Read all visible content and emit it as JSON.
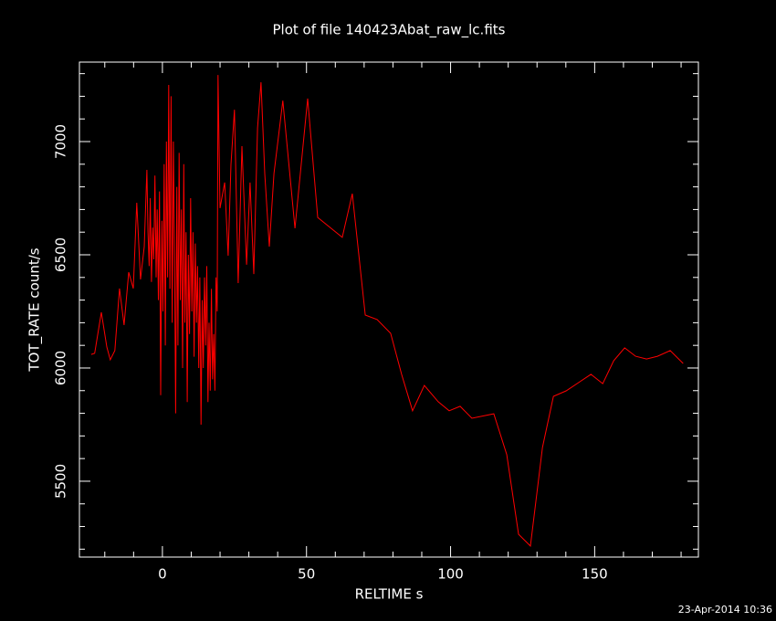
{
  "chart_data": {
    "type": "line",
    "title": "Plot of file 140423Abat_raw_lc.fits",
    "xlabel": "RELTIME  s",
    "ylabel": "TOT_RATE  count/s",
    "footer": "23-Apr-2014 10:36",
    "color": "#ff0000",
    "axis_color": "#ffffff",
    "xlim": [
      -28.8,
      186
    ],
    "ylim": [
      5165,
      7351
    ],
    "xticks": [
      0,
      50,
      100,
      150
    ],
    "yticks": [
      5500,
      6000,
      6500,
      7000
    ],
    "xminorticks": [
      -20,
      -10,
      10,
      20,
      30,
      40,
      60,
      70,
      80,
      90,
      110,
      120,
      130,
      140,
      160,
      170,
      180
    ],
    "yminorticks": [
      5200,
      5300,
      5400,
      5600,
      5700,
      5800,
      5900,
      6100,
      6200,
      6300,
      6400,
      6600,
      6700,
      6800,
      6900,
      7100,
      7200,
      7300
    ],
    "x": [
      -24.7,
      -23.5,
      -21.2,
      -19.3,
      -18.1,
      -16.5,
      -14.9,
      -13.3,
      -11.7,
      -10.1,
      -8.9,
      -7.6,
      -6.3,
      -5.4,
      -5.0,
      -4.6,
      -4.2,
      -3.8,
      -3.4,
      -3.0,
      -2.6,
      -2.2,
      -1.8,
      -1.4,
      -1.0,
      -0.6,
      -0.2,
      0.2,
      0.6,
      1.0,
      1.4,
      1.8,
      2.2,
      2.6,
      3.0,
      3.4,
      3.8,
      4.2,
      4.6,
      5.0,
      5.4,
      5.8,
      6.2,
      6.6,
      7.0,
      7.4,
      7.8,
      8.2,
      8.6,
      9.0,
      9.4,
      9.8,
      10.2,
      10.6,
      11.0,
      11.4,
      11.8,
      12.2,
      12.6,
      13.0,
      13.4,
      13.8,
      14.2,
      14.6,
      15.0,
      15.4,
      15.8,
      16.2,
      16.6,
      17.0,
      17.4,
      17.8,
      18.2,
      18.6,
      19.0,
      19.3,
      20.0,
      21.6,
      22.8,
      23.8,
      25.0,
      26.3,
      27.6,
      29.2,
      30.4,
      31.7,
      33.0,
      34.2,
      35.5,
      37.1,
      38.7,
      41.8,
      46.0,
      50.4,
      53.9,
      62.4,
      65.9,
      70.4,
      74.5,
      79.2,
      83.0,
      86.8,
      90.9,
      95.7,
      99.5,
      103.3,
      107.4,
      115.0,
      119.5,
      123.6,
      127.7,
      131.9,
      135.7,
      140.1,
      148.7,
      152.8,
      156.6,
      160.4,
      164.2,
      168.0,
      171.8,
      176.2,
      180.7
    ],
    "values": [
      6060,
      6065,
      6246,
      6093,
      6036,
      6077,
      6351,
      6190,
      6423,
      6351,
      6730,
      6391,
      6536,
      6875,
      6600,
      6450,
      6750,
      6380,
      6620,
      6480,
      6850,
      6400,
      6700,
      6300,
      6780,
      5880,
      6650,
      6250,
      6900,
      6100,
      7000,
      6400,
      7250,
      6350,
      7200,
      6200,
      7000,
      6500,
      5800,
      6800,
      6100,
      6950,
      6300,
      6700,
      6000,
      6900,
      6200,
      6600,
      5850,
      6500,
      6150,
      6750,
      6250,
      6600,
      6050,
      6550,
      6200,
      6450,
      6000,
      6400,
      5750,
      6300,
      6000,
      6400,
      6100,
      6450,
      5850,
      6200,
      5900,
      6350,
      5950,
      6150,
      5900,
      6400,
      6250,
      7294,
      6706,
      6819,
      6496,
      6899,
      7141,
      6375,
      6980,
      6456,
      6819,
      6415,
      7060,
      7262,
      6859,
      6536,
      6859,
      7181,
      6617,
      7190,
      6665,
      6577,
      6770,
      6234,
      6214,
      6153,
      5972,
      5811,
      5923,
      5851,
      5811,
      5831,
      5778,
      5798,
      5617,
      5266,
      5214,
      5649,
      5875,
      5899,
      5972,
      5931,
      6032,
      6089,
      6052,
      6040,
      6052,
      6077,
      6020
    ]
  }
}
